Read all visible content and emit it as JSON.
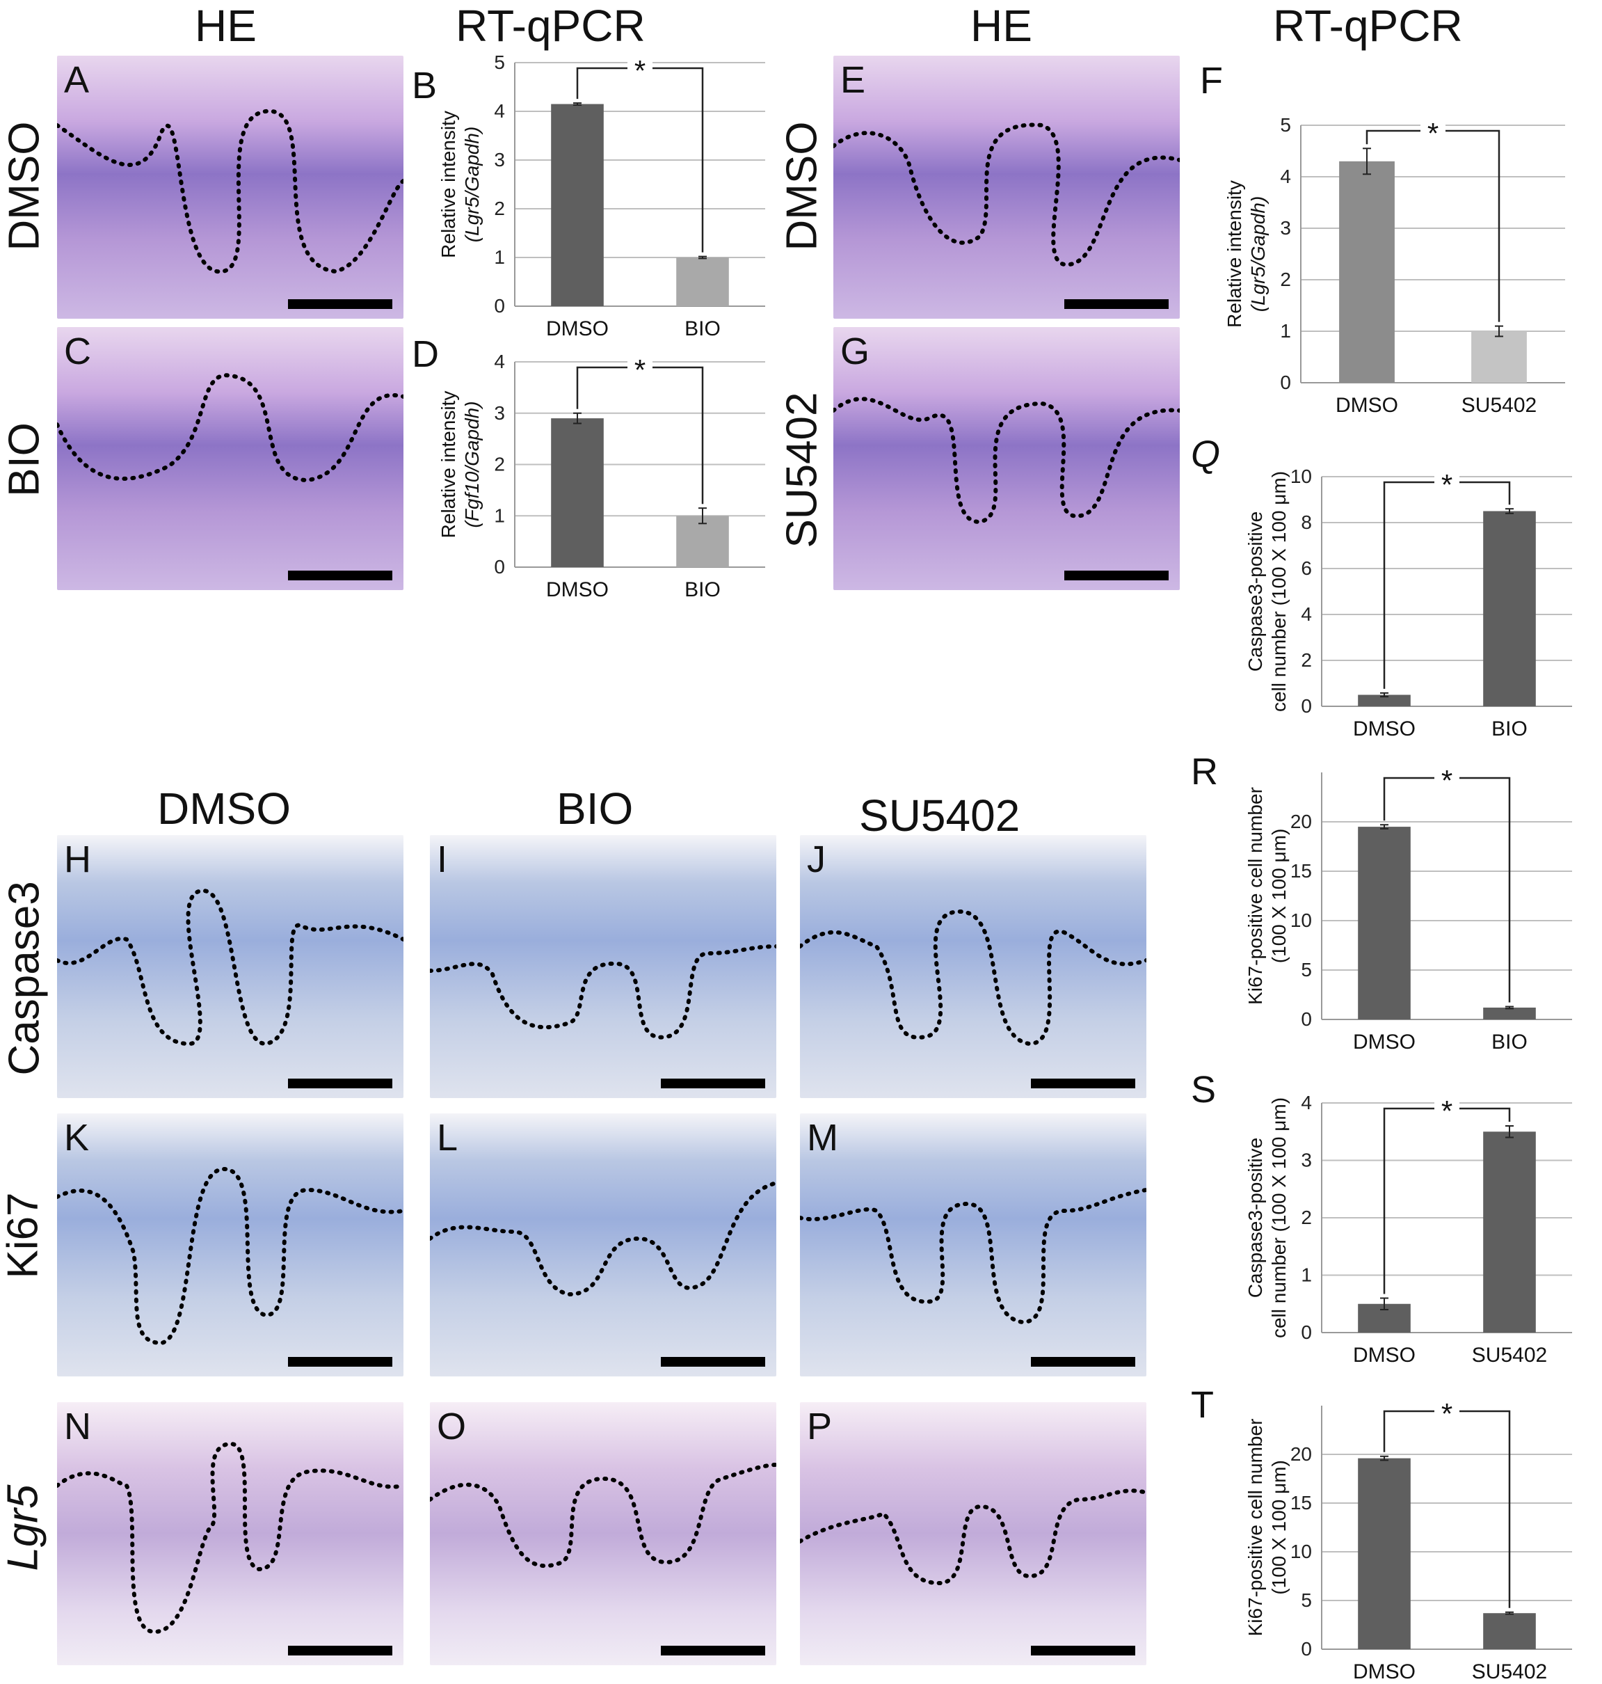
{
  "headers": {
    "he_left": "HE",
    "rtqpcr_left": "RT-qPCR",
    "he_right": "HE",
    "rtqpcr_right": "RT-qPCR",
    "dmso_mid": "DMSO",
    "bio_mid": "BIO",
    "su_mid": "SU5402"
  },
  "row_labels": {
    "dmso_a": "DMSO",
    "bio_c": "BIO",
    "dmso_e": "DMSO",
    "su_g": "SU5402",
    "caspase3": "Caspase3",
    "ki67": "Ki67",
    "lgr5": "Lgr5"
  },
  "micro_panels": [
    {
      "letter": "A",
      "stain": "he"
    },
    {
      "letter": "C",
      "stain": "he"
    },
    {
      "letter": "E",
      "stain": "he"
    },
    {
      "letter": "G",
      "stain": "he"
    },
    {
      "letter": "H",
      "stain": "ihc"
    },
    {
      "letter": "I",
      "stain": "ihc"
    },
    {
      "letter": "J",
      "stain": "ihc"
    },
    {
      "letter": "K",
      "stain": "ihc"
    },
    {
      "letter": "L",
      "stain": "ihc"
    },
    {
      "letter": "M",
      "stain": "ihc"
    },
    {
      "letter": "N",
      "stain": "ish"
    },
    {
      "letter": "O",
      "stain": "ish"
    },
    {
      "letter": "P",
      "stain": "ish"
    }
  ],
  "colors": {
    "bar_dark": "#5f5f5f",
    "bar_light": "#a9a9a9",
    "bar_mid": "#8c8c8c",
    "bar_lighter": "#c4c4c4",
    "grid": "#bfbfbf"
  },
  "chart_data": [
    {
      "panel": "B",
      "type": "bar",
      "categories": [
        "DMSO",
        "BIO"
      ],
      "values": [
        4.15,
        1.0
      ],
      "errors": [
        0.02,
        0.02
      ],
      "ylim": [
        0,
        5
      ],
      "yticks": [
        "0",
        "1",
        "2",
        "3",
        "4",
        "5"
      ],
      "ylabel_line1": "Relative intensity",
      "ylabel_line2": "(Lgr5/Gapdh)",
      "significance": "*",
      "grid": true
    },
    {
      "panel": "D",
      "type": "bar",
      "categories": [
        "DMSO",
        "BIO"
      ],
      "values": [
        2.9,
        1.0
      ],
      "errors": [
        0.1,
        0.15
      ],
      "ylim": [
        0,
        4
      ],
      "yticks": [
        "0",
        "1",
        "2",
        "3",
        "4"
      ],
      "ylabel_line1": "Relative intensity",
      "ylabel_line2": "(Fgf10/Gapdh)",
      "significance": "*",
      "grid": true
    },
    {
      "panel": "F",
      "type": "bar",
      "categories": [
        "DMSO",
        "SU5402"
      ],
      "values": [
        4.3,
        1.0
      ],
      "errors": [
        0.25,
        0.1
      ],
      "ylim": [
        0,
        5
      ],
      "yticks": [
        "0",
        "1",
        "2",
        "3",
        "4",
        "5"
      ],
      "ylabel_line1": "Relative intensity",
      "ylabel_line2": "(Lgr5/Gapdh)",
      "significance": "*",
      "grid": true
    },
    {
      "panel": "Q",
      "type": "bar",
      "categories": [
        "DMSO",
        "BIO"
      ],
      "values": [
        0.5,
        8.5
      ],
      "errors": [
        0.08,
        0.1
      ],
      "ylim": [
        0,
        10
      ],
      "yticks": [
        "0",
        "2",
        "4",
        "6",
        "8",
        "10"
      ],
      "ylabel_line1": "Caspase3-positive",
      "ylabel_line2": "cell number (100 X 100 μm)",
      "significance": "*",
      "grid": true
    },
    {
      "panel": "R",
      "type": "bar",
      "categories": [
        "DMSO",
        "BIO"
      ],
      "values": [
        19.5,
        1.2
      ],
      "errors": [
        0.2,
        0.1
      ],
      "ylim": [
        0,
        25
      ],
      "yticks": [
        "0",
        "5",
        "10",
        "15",
        "20"
      ],
      "ylabel_line1": "Ki67-positive cell number",
      "ylabel_line2": "(100 X 100 μm)",
      "significance": "*",
      "grid": true
    },
    {
      "panel": "S",
      "type": "bar",
      "categories": [
        "DMSO",
        "SU5402"
      ],
      "values": [
        0.5,
        3.5
      ],
      "errors": [
        0.1,
        0.1
      ],
      "ylim": [
        0,
        4
      ],
      "yticks": [
        "0",
        "1",
        "2",
        "3",
        "4"
      ],
      "ylabel_line1": "Caspase3-positive",
      "ylabel_line2": "cell number (100 X 100 μm)",
      "significance": "*",
      "grid": true
    },
    {
      "panel": "T",
      "type": "bar",
      "categories": [
        "DMSO",
        "SU5402"
      ],
      "values": [
        19.6,
        3.7
      ],
      "errors": [
        0.2,
        0.1
      ],
      "ylim": [
        0,
        25
      ],
      "yticks": [
        "0",
        "5",
        "10",
        "15",
        "20"
      ],
      "ylabel_line1": "Ki67-positive cell number",
      "ylabel_line2": "(100 X 100 μm)",
      "significance": "*",
      "grid": true
    }
  ]
}
